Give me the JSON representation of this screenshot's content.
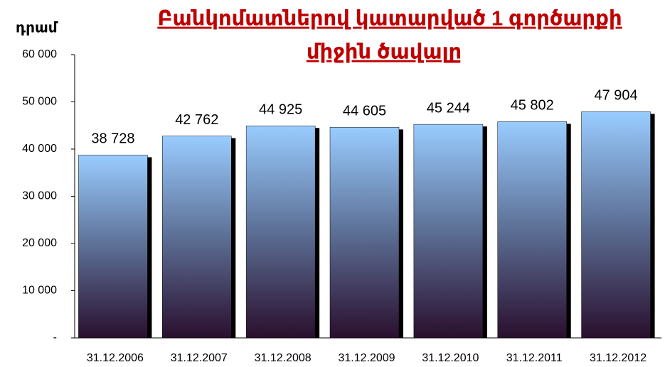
{
  "chart_data": {
    "type": "bar",
    "title": [
      "Բանկոմատներով կատարված 1 գործարքի",
      "միջին ծավալը"
    ],
    "y_label": "դրամ",
    "categories": [
      "31.12.2006",
      "31.12.2007",
      "31.12.2008",
      "31.12.2009",
      "31.12.2010",
      "31.12.2011",
      "31.12.2012"
    ],
    "values": [
      38728,
      42762,
      44925,
      44605,
      45244,
      45802,
      47904
    ],
    "value_labels": [
      "38 728",
      "42 762",
      "44 925",
      "44 605",
      "45 244",
      "45 802",
      "47 904"
    ],
    "color": "#99ccff",
    "ylim": [
      0,
      60000
    ],
    "yticks": [
      {
        "value": 0,
        "label": "-"
      },
      {
        "value": 10000,
        "label": "10 000"
      },
      {
        "value": 20000,
        "label": "20 000"
      },
      {
        "value": 30000,
        "label": "30 000"
      },
      {
        "value": 40000,
        "label": "40 000"
      },
      {
        "value": 50000,
        "label": "50 000"
      },
      {
        "value": 60000,
        "label": "60 000"
      }
    ],
    "grid": false
  }
}
